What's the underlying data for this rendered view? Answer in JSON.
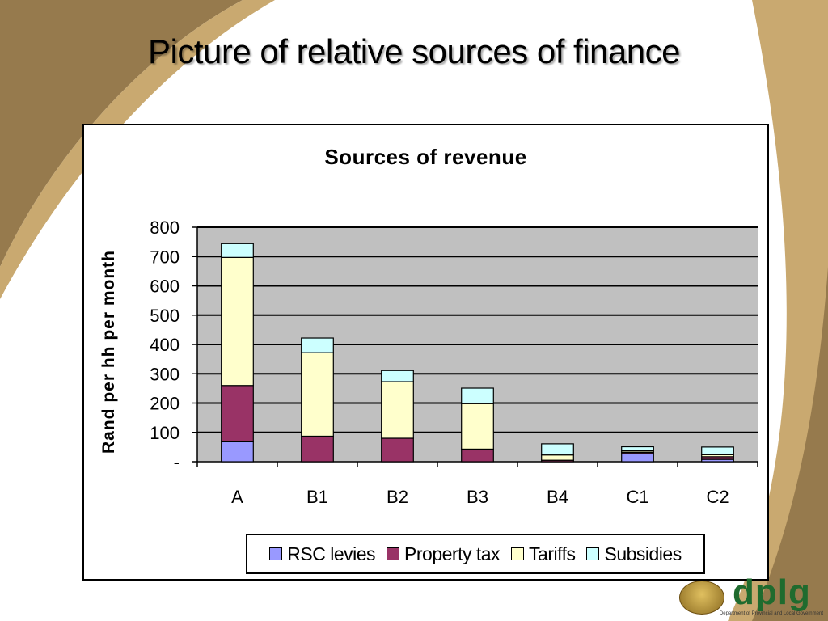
{
  "slide": {
    "title": "Picture of relative sources of finance",
    "logo_text": "dplg",
    "logo_subtext": "Department of Provincial and Local Government"
  },
  "colors": {
    "brown_dark": "#967a4d",
    "tan": "#c9a970",
    "plot_bg": "#c0c0c0",
    "rsc_levies": "#9999ff",
    "property_tax": "#993366",
    "tariffs": "#ffffcc",
    "subsidies": "#ccffff"
  },
  "chart_data": {
    "type": "bar",
    "stacked": true,
    "title": "Sources of revenue",
    "xlabel": "",
    "ylabel": "Rand per hh per month",
    "ylim": [
      0,
      800
    ],
    "yticks": [
      0,
      100,
      200,
      300,
      400,
      500,
      600,
      700,
      800
    ],
    "ytick_labels": [
      "-",
      "100",
      "200",
      "300",
      "400",
      "500",
      "600",
      "700",
      "800"
    ],
    "grid": true,
    "legend_position": "bottom",
    "categories": [
      "A",
      "B1",
      "B2",
      "B3",
      "B4",
      "C1",
      "C2"
    ],
    "series": [
      {
        "name": "RSC levies",
        "color": "#9999ff",
        "values": [
          68,
          0,
          0,
          0,
          0,
          28,
          8
        ]
      },
      {
        "name": "Property tax",
        "color": "#993366",
        "values": [
          192,
          87,
          80,
          43,
          5,
          4,
          9
        ]
      },
      {
        "name": "Tariffs",
        "color": "#ffffcc",
        "values": [
          437,
          285,
          193,
          155,
          18,
          5,
          7
        ]
      },
      {
        "name": "Subsidies",
        "color": "#ccffff",
        "values": [
          47,
          50,
          38,
          53,
          38,
          14,
          26
        ]
      }
    ]
  }
}
